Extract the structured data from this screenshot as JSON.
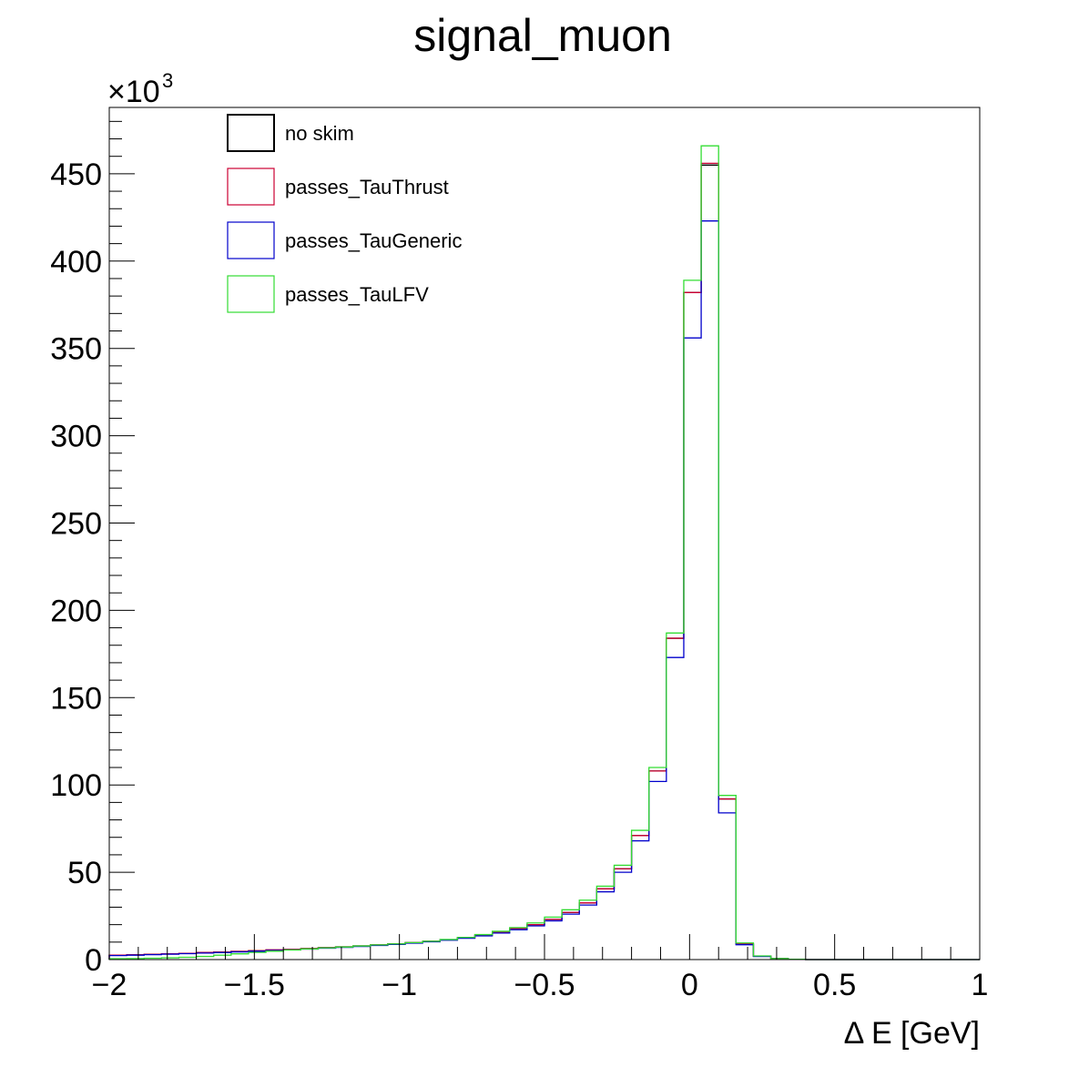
{
  "chart_data": {
    "type": "line",
    "title": "signal_muon",
    "xlabel": "Δ E [GeV]",
    "ylabel": "",
    "y_multiplier": "×10",
    "y_multiplier_exp": "3",
    "xlim": [
      -2,
      1
    ],
    "ylim": [
      0,
      488
    ],
    "x_ticks": [
      -2,
      -1.5,
      -1,
      -0.5,
      0,
      0.5,
      1
    ],
    "x_tick_labels": [
      "−2",
      "−1.5",
      "−1",
      "−0.5",
      "0",
      "0.5",
      "1"
    ],
    "y_ticks": [
      0,
      50,
      100,
      150,
      200,
      250,
      300,
      350,
      400,
      450
    ],
    "y_tick_labels": [
      "0",
      "50",
      "100",
      "150",
      "200",
      "250",
      "300",
      "350",
      "400",
      "450"
    ],
    "grid": false,
    "legend_position": "top-left",
    "bin_edges": [
      -2.0,
      -1.94,
      -1.88,
      -1.82,
      -1.76,
      -1.7,
      -1.64,
      -1.58,
      -1.52,
      -1.46,
      -1.4,
      -1.34,
      -1.28,
      -1.22,
      -1.16,
      -1.1,
      -1.04,
      -0.98,
      -0.92,
      -0.86,
      -0.8,
      -0.74,
      -0.68,
      -0.62,
      -0.56,
      -0.5,
      -0.44,
      -0.38,
      -0.32,
      -0.26,
      -0.2,
      -0.14,
      -0.08,
      -0.02,
      0.04,
      0.1,
      0.16,
      0.22,
      0.28,
      0.34,
      0.4,
      0.46,
      0.52,
      0.58,
      0.64,
      0.7,
      0.76,
      0.82,
      0.88,
      0.94,
      1.0
    ],
    "series": [
      {
        "name": "no skim",
        "color": "#000000",
        "values": [
          2.5,
          2.7,
          3.0,
          3.3,
          3.6,
          4.0,
          4.3,
          4.7,
          5.1,
          5.5,
          5.9,
          6.3,
          6.8,
          7.3,
          7.8,
          8.4,
          9.0,
          9.7,
          10.5,
          11.4,
          12.5,
          14.0,
          15.7,
          17.7,
          20.0,
          23.0,
          27.0,
          32.5,
          40.5,
          52.0,
          71.0,
          108.0,
          184.0,
          382.0,
          455.0,
          92.0,
          9.0,
          2.0,
          0.6,
          0.2,
          0,
          0,
          0,
          0,
          0,
          0,
          0,
          0,
          0,
          0
        ]
      },
      {
        "name": "passes_TauThrust",
        "color": "#cc0033",
        "values": [
          2.5,
          2.7,
          3.0,
          3.3,
          3.6,
          4.0,
          4.3,
          4.7,
          5.1,
          5.5,
          5.9,
          6.3,
          6.8,
          7.3,
          7.8,
          8.4,
          9.0,
          9.7,
          10.5,
          11.4,
          12.5,
          14.0,
          15.7,
          17.7,
          20.0,
          23.0,
          27.0,
          32.5,
          40.5,
          52.0,
          71.0,
          108.0,
          184.0,
          382.0,
          456.0,
          92.0,
          9.0,
          2.0,
          0.6,
          0.2,
          0,
          0,
          0,
          0,
          0,
          0,
          0,
          0,
          0,
          0
        ]
      },
      {
        "name": "passes_TauGeneric",
        "color": "#0000cc",
        "values": [
          2.3,
          2.5,
          2.8,
          3.1,
          3.4,
          3.7,
          4.0,
          4.4,
          4.8,
          5.2,
          5.6,
          6.0,
          6.5,
          7.0,
          7.5,
          8.1,
          8.7,
          9.4,
          10.2,
          11.1,
          12.2,
          13.6,
          15.2,
          17.1,
          19.3,
          22.2,
          26.0,
          31.2,
          38.8,
          50.0,
          68.0,
          102.0,
          173.0,
          356.0,
          423.0,
          84.0,
          8.5,
          1.8,
          0.5,
          0.2,
          0,
          0,
          0,
          0,
          0,
          0,
          0,
          0,
          0,
          0
        ]
      },
      {
        "name": "passes_TauLFV",
        "color": "#33dd33",
        "values": [
          0.5,
          0.6,
          0.8,
          1.0,
          1.3,
          1.8,
          2.5,
          3.3,
          4.1,
          4.8,
          5.5,
          6.1,
          6.7,
          7.2,
          7.8,
          8.4,
          9.0,
          9.7,
          10.5,
          11.5,
          12.7,
          14.3,
          16.2,
          18.3,
          21.0,
          24.3,
          28.5,
          34.0,
          42.0,
          54.0,
          74.0,
          110.0,
          187.0,
          389.0,
          466.0,
          94.0,
          9.5,
          2.1,
          0.6,
          0.2,
          0,
          0,
          0,
          0,
          0,
          0,
          0,
          0,
          0,
          0
        ]
      }
    ]
  }
}
